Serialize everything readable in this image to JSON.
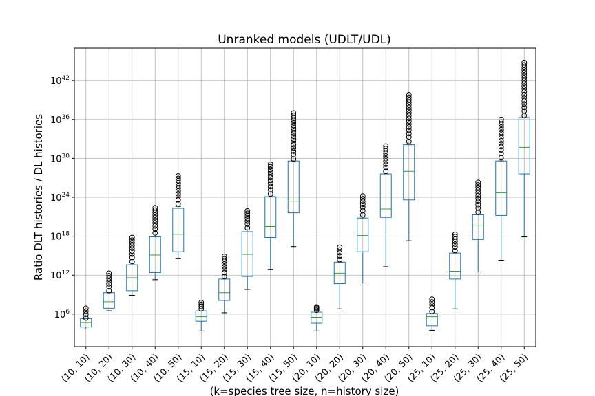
{
  "chart_data": {
    "type": "box",
    "title": "Unranked models (UDLT/UDL)",
    "xlabel": "(k=species tree size, n=history size)",
    "ylabel": "Ratio DLT histories / DL histories",
    "yscale": "log",
    "ylim_log10": [
      1,
      47
    ],
    "ytick_exponents": [
      6,
      12,
      18,
      24,
      30,
      36,
      42
    ],
    "ytick_base": "10",
    "grid": true,
    "categories": [
      "(10, 10)",
      "(10, 20)",
      "(10, 30)",
      "(10, 40)",
      "(10, 50)",
      "(15, 10)",
      "(15, 20)",
      "(15, 30)",
      "(15, 40)",
      "(15, 50)",
      "(20, 10)",
      "(20, 20)",
      "(20, 30)",
      "(20, 40)",
      "(20, 50)",
      "(25, 10)",
      "(25, 20)",
      "(25, 30)",
      "(25, 40)",
      "(25, 50)"
    ],
    "boxes_log10": [
      {
        "wlo": 3.7,
        "q1": 4.0,
        "med": 4.7,
        "q3": 5.3,
        "whi": 5.3,
        "flier_min": 5.4,
        "flier_max": 6.9
      },
      {
        "wlo": 6.5,
        "q1": 6.9,
        "med": 7.9,
        "q3": 9.3,
        "whi": 9.3,
        "flier_min": 9.6,
        "flier_max": 12.3
      },
      {
        "wlo": 8.9,
        "q1": 9.6,
        "med": 11.6,
        "q3": 13.6,
        "whi": 13.6,
        "flier_min": 14.1,
        "flier_max": 17.8
      },
      {
        "wlo": 11.3,
        "q1": 12.4,
        "med": 15.1,
        "q3": 17.9,
        "whi": 17.9,
        "flier_min": 18.5,
        "flier_max": 22.4
      },
      {
        "wlo": 14.6,
        "q1": 15.6,
        "med": 18.3,
        "q3": 22.3,
        "whi": 22.6,
        "flier_min": 23.0,
        "flier_max": 27.3
      },
      {
        "wlo": 3.4,
        "q1": 4.9,
        "med": 5.6,
        "q3": 6.5,
        "whi": 6.5,
        "flier_min": 6.8,
        "flier_max": 7.8
      },
      {
        "wlo": 6.2,
        "q1": 8.1,
        "med": 9.3,
        "q3": 11.4,
        "whi": 11.4,
        "flier_min": 11.8,
        "flier_max": 14.9
      },
      {
        "wlo": 9.8,
        "q1": 11.8,
        "med": 15.2,
        "q3": 18.7,
        "whi": 18.7,
        "flier_min": 19.3,
        "flier_max": 21.9
      },
      {
        "wlo": 12.9,
        "q1": 17.8,
        "med": 19.5,
        "q3": 24.1,
        "whi": 24.1,
        "flier_min": 24.5,
        "flier_max": 29.1
      },
      {
        "wlo": 16.4,
        "q1": 21.6,
        "med": 23.4,
        "q3": 29.6,
        "whi": 29.6,
        "flier_min": 29.9,
        "flier_max": 37.0
      },
      {
        "wlo": 3.4,
        "q1": 4.6,
        "med": 5.5,
        "q3": 6.3,
        "whi": 6.3,
        "flier_min": 6.6,
        "flier_max": 7.1
      },
      {
        "wlo": 6.8,
        "q1": 10.7,
        "med": 12.3,
        "q3": 14.0,
        "whi": 14.0,
        "flier_min": 14.4,
        "flier_max": 16.3
      },
      {
        "wlo": 10.8,
        "q1": 15.6,
        "med": 18.1,
        "q3": 20.8,
        "whi": 20.8,
        "flier_min": 21.3,
        "flier_max": 24.2
      },
      {
        "wlo": 13.3,
        "q1": 20.9,
        "med": 22.2,
        "q3": 27.6,
        "whi": 27.6,
        "flier_min": 28.0,
        "flier_max": 31.9
      },
      {
        "wlo": 17.3,
        "q1": 23.6,
        "med": 28.0,
        "q3": 32.1,
        "whi": 32.1,
        "flier_min": 32.6,
        "flier_max": 39.8
      },
      {
        "wlo": 3.5,
        "q1": 4.2,
        "med": 5.6,
        "q3": 6.1,
        "whi": 6.1,
        "flier_min": 6.4,
        "flier_max": 8.3
      },
      {
        "wlo": 6.8,
        "q1": 11.4,
        "med": 12.6,
        "q3": 15.4,
        "whi": 15.4,
        "flier_min": 15.8,
        "flier_max": 18.3
      },
      {
        "wlo": 12.5,
        "q1": 17.5,
        "med": 19.7,
        "q3": 21.3,
        "whi": 21.3,
        "flier_min": 21.7,
        "flier_max": 26.3
      },
      {
        "wlo": 14.3,
        "q1": 21.2,
        "med": 24.7,
        "q3": 29.6,
        "whi": 29.6,
        "flier_min": 30.1,
        "flier_max": 36.0
      },
      {
        "wlo": 17.9,
        "q1": 27.6,
        "med": 31.7,
        "q3": 36.3,
        "whi": 36.3,
        "flier_min": 36.6,
        "flier_max": 44.8
      }
    ]
  }
}
